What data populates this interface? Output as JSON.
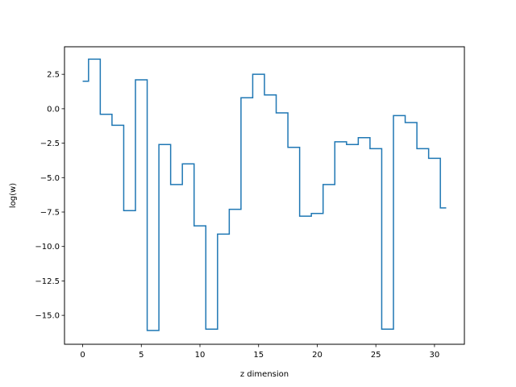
{
  "chart_data": {
    "type": "line",
    "step": "mid",
    "xlabel": "z dimension",
    "ylabel": "log(w)",
    "xlim": [
      -1.55,
      32.55
    ],
    "ylim": [
      -17.1,
      4.5
    ],
    "xticks": [
      0,
      5,
      10,
      15,
      20,
      25,
      30
    ],
    "yticks": [
      2.5,
      0.0,
      -2.5,
      -5.0,
      -7.5,
      -10.0,
      -12.5,
      -15.0
    ],
    "ytick_labels": [
      "2.5",
      "0.0",
      "−2.5",
      "−5.0",
      "−7.5",
      "−10.0",
      "−12.5",
      "−15.0"
    ],
    "grid": false,
    "series": [
      {
        "color": "#1f77b4",
        "x": [
          0,
          1,
          2,
          3,
          4,
          5,
          6,
          7,
          8,
          9,
          10,
          11,
          12,
          13,
          14,
          15,
          16,
          17,
          18,
          19,
          20,
          21,
          22,
          23,
          24,
          25,
          26,
          27,
          28,
          29,
          30,
          31
        ],
        "y": [
          2.0,
          3.6,
          -0.4,
          -1.2,
          -7.4,
          2.1,
          -16.1,
          -2.6,
          -5.5,
          -4.0,
          -8.5,
          -16.0,
          -9.1,
          -7.3,
          0.8,
          2.5,
          1.0,
          -0.3,
          -2.8,
          -7.8,
          -7.6,
          -5.5,
          -2.4,
          -2.6,
          -2.1,
          -2.9,
          -16.0,
          -0.5,
          -1.0,
          -2.9,
          -3.6,
          -7.2
        ]
      }
    ]
  }
}
